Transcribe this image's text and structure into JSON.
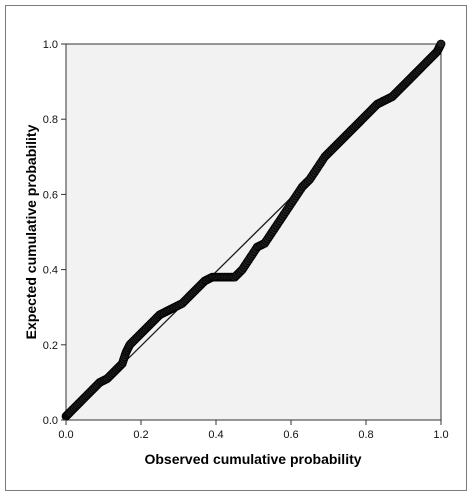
{
  "chart_data": {
    "type": "scatter",
    "title": "",
    "xlabel": "Observed cumulative probability",
    "ylabel": "Expected cumulative probability",
    "xlim": [
      0.0,
      1.0
    ],
    "ylim": [
      0.0,
      1.0
    ],
    "xticks": [
      "0.0",
      "0.2",
      "0.4",
      "0.6",
      "0.8",
      "1.0"
    ],
    "yticks": [
      "0.0",
      "0.2",
      "0.4",
      "0.6",
      "0.8",
      "1.0"
    ],
    "grid": false,
    "legend": "none",
    "reference_line": [
      [
        0.0,
        0.0
      ],
      [
        0.67,
        0.66
      ]
    ],
    "series": [
      {
        "points": [
          [
            0.0,
            0.01
          ],
          [
            0.01,
            0.02
          ],
          [
            0.03,
            0.04
          ],
          [
            0.05,
            0.06
          ],
          [
            0.07,
            0.08
          ],
          [
            0.09,
            0.1
          ],
          [
            0.11,
            0.11
          ],
          [
            0.13,
            0.13
          ],
          [
            0.15,
            0.15
          ],
          [
            0.16,
            0.18
          ],
          [
            0.17,
            0.2
          ],
          [
            0.19,
            0.22
          ],
          [
            0.21,
            0.24
          ],
          [
            0.23,
            0.26
          ],
          [
            0.25,
            0.28
          ],
          [
            0.27,
            0.29
          ],
          [
            0.29,
            0.3
          ],
          [
            0.31,
            0.31
          ],
          [
            0.33,
            0.33
          ],
          [
            0.35,
            0.35
          ],
          [
            0.37,
            0.37
          ],
          [
            0.39,
            0.38
          ],
          [
            0.41,
            0.38
          ],
          [
            0.43,
            0.38
          ],
          [
            0.45,
            0.38
          ],
          [
            0.47,
            0.4
          ],
          [
            0.49,
            0.43
          ],
          [
            0.51,
            0.46
          ],
          [
            0.53,
            0.47
          ],
          [
            0.55,
            0.5
          ],
          [
            0.57,
            0.53
          ],
          [
            0.59,
            0.56
          ],
          [
            0.61,
            0.59
          ],
          [
            0.63,
            0.62
          ],
          [
            0.65,
            0.64
          ],
          [
            0.67,
            0.67
          ],
          [
            0.69,
            0.7
          ],
          [
            0.71,
            0.72
          ],
          [
            0.73,
            0.74
          ],
          [
            0.75,
            0.76
          ],
          [
            0.77,
            0.78
          ],
          [
            0.79,
            0.8
          ],
          [
            0.81,
            0.82
          ],
          [
            0.83,
            0.84
          ],
          [
            0.85,
            0.85
          ],
          [
            0.87,
            0.86
          ],
          [
            0.89,
            0.88
          ],
          [
            0.91,
            0.9
          ],
          [
            0.93,
            0.92
          ],
          [
            0.95,
            0.94
          ],
          [
            0.97,
            0.96
          ],
          [
            0.99,
            0.98
          ],
          [
            1.0,
            1.0
          ]
        ]
      }
    ],
    "colors": {
      "plot_background": "#f2f2f2",
      "marker": "#202020",
      "reference_line": "#1a1a1a"
    }
  }
}
